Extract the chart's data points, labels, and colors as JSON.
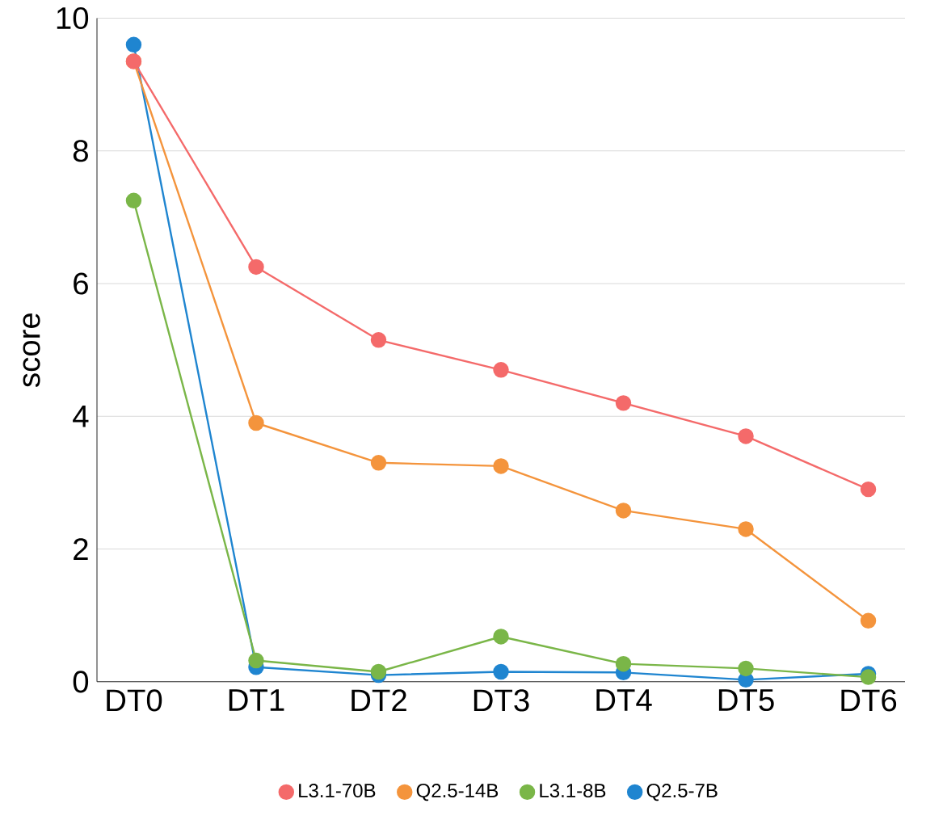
{
  "chart_data": {
    "type": "line",
    "ylabel": "score",
    "categories": [
      "DT0",
      "DT1",
      "DT2",
      "DT3",
      "DT4",
      "DT5",
      "DT6"
    ],
    "series": [
      {
        "name": "L3.1-70B",
        "color": "#f46a6a",
        "values": [
          9.35,
          6.25,
          5.15,
          4.7,
          4.2,
          3.7,
          2.9
        ]
      },
      {
        "name": "Q2.5-14B",
        "color": "#f4943c",
        "values": [
          9.35,
          3.9,
          3.3,
          3.25,
          2.58,
          2.3,
          0.92
        ]
      },
      {
        "name": "L3.1-8B",
        "color": "#7ab648",
        "values": [
          7.25,
          0.32,
          0.15,
          0.68,
          0.27,
          0.2,
          0.07
        ]
      },
      {
        "name": "Q2.5-7B",
        "color": "#1f85d0",
        "values": [
          9.6,
          0.22,
          0.1,
          0.15,
          0.14,
          0.03,
          0.12
        ]
      }
    ],
    "ylim": [
      0,
      10
    ],
    "yticks": [
      0,
      2,
      4,
      6,
      8,
      10
    ],
    "grid": "y",
    "legend": "bottom",
    "marker": "circle",
    "line_style": "solid"
  }
}
